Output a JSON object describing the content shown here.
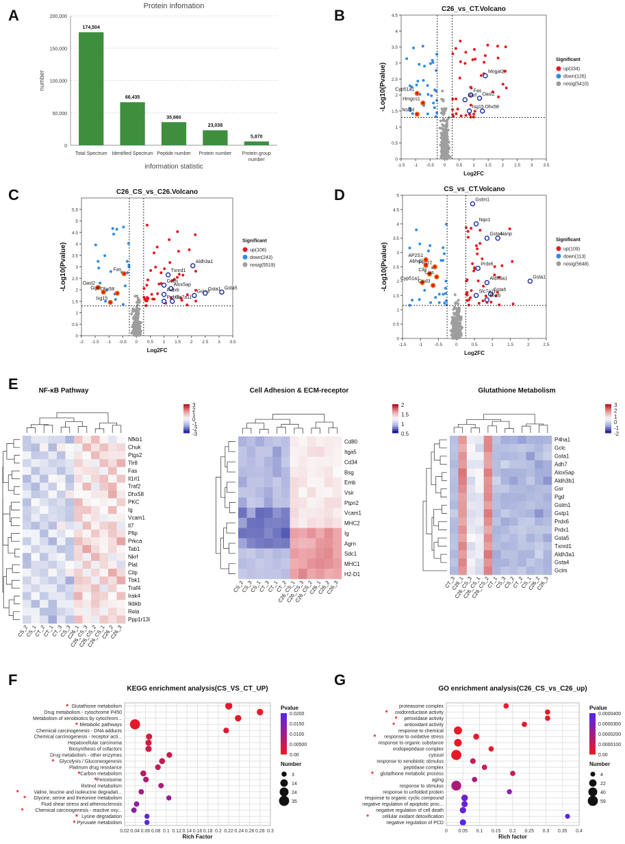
{
  "panel_labels": [
    "A",
    "B",
    "C",
    "D",
    "E",
    "F",
    "G"
  ],
  "chart_data": [
    {
      "id": "A",
      "type": "bar",
      "title": "Protein infomation",
      "xlabel": "information statistic",
      "ylabel": "number",
      "ylim": [
        0,
        200000
      ],
      "yticks": [
        "0",
        "50,000",
        "100,000",
        "150,000",
        "200,000"
      ],
      "categories": [
        "Total Spectrum",
        "Identified Spectrum",
        "Peptide number",
        "Protein number",
        "Protein group number"
      ],
      "values": [
        174504,
        66435,
        35660,
        23038,
        5870
      ],
      "value_labels": [
        "174,504",
        "66,435",
        "35,660",
        "23,038",
        "5,870"
      ],
      "color": "#3e8e3e"
    },
    {
      "id": "B",
      "type": "scatter",
      "title": "C26_vs_CT.Volcano",
      "xlabel": "Log2FC",
      "ylabel": "-Log10(Pvalue)",
      "xlim": [
        -1.5,
        3.5
      ],
      "ylim": [
        0,
        4.5
      ],
      "xticks": [
        "-1.5",
        "-1",
        "-0.5",
        "0",
        "0.5",
        "1",
        "1.5",
        "2",
        "2.5",
        "3",
        "3.5"
      ],
      "yticks": [
        "0",
        "0.5",
        "1",
        "1.5",
        "2",
        "2.5",
        "3",
        "3.5",
        "4",
        "4.5"
      ],
      "vlines": [
        -0.26,
        0.26
      ],
      "hline": 1.3,
      "legend_title": "Significant",
      "legend": [
        "up(334)",
        "down(126)",
        "nosig(5410)"
      ],
      "labeled_points": [
        {
          "label": "Mogat2",
          "x": 1.4,
          "y": 2.6,
          "group": "up"
        },
        {
          "label": "Oasl2",
          "x": 1.2,
          "y": 1.9,
          "group": "up"
        },
        {
          "label": "Fas",
          "x": 0.9,
          "y": 2.0,
          "group": "up"
        },
        {
          "label": "Nkrf",
          "x": 0.7,
          "y": 1.85,
          "group": "up"
        },
        {
          "label": "Isg15",
          "x": 0.85,
          "y": 1.5,
          "group": "up"
        },
        {
          "label": "Dhx58",
          "x": 1.3,
          "y": 1.5,
          "group": "up"
        },
        {
          "label": "Cyp51a1",
          "x": -0.95,
          "y": 2.05,
          "group": "down"
        },
        {
          "label": "Hmgcs1",
          "x": -0.75,
          "y": 1.75,
          "group": "down"
        },
        {
          "label": "Nsdhl",
          "x": -0.95,
          "y": 1.4,
          "group": "down"
        }
      ]
    },
    {
      "id": "C",
      "type": "scatter",
      "title": "C26_CS_vs_C26.Volcano",
      "xlabel": "Log2FC",
      "ylabel": "-Log10(Pvalue)",
      "xlim": [
        -2,
        3.5
      ],
      "ylim": [
        0,
        6
      ],
      "xticks": [
        "-2",
        "-1.5",
        "-1",
        "-0.5",
        "0",
        "0.5",
        "1",
        "1.5",
        "2",
        "2.5",
        "3",
        "3.5"
      ],
      "yticks": [
        "0",
        "0.5",
        "1",
        "1.5",
        "2",
        "2.5",
        "3",
        "3.5",
        "4",
        "4.5",
        "5",
        "5.5"
      ],
      "vlines": [
        -0.26,
        0.26
      ],
      "hline": 1.3,
      "legend_title": "Significant",
      "legend": [
        "up(108)",
        "down(243)",
        "nosig(5519)"
      ],
      "labeled_points": [
        {
          "label": "Aldh3a1",
          "x": 2.05,
          "y": 3.05,
          "group": "up"
        },
        {
          "label": "Txnrd1",
          "x": 1.15,
          "y": 2.65,
          "group": "up"
        },
        {
          "label": "Gclm",
          "x": 1.0,
          "y": 2.2,
          "group": "up"
        },
        {
          "label": "Alox5ap",
          "x": 1.25,
          "y": 2.05,
          "group": "up"
        },
        {
          "label": "Prdx6",
          "x": 1.0,
          "y": 1.8,
          "group": "up"
        },
        {
          "label": "Gsta4",
          "x": 2.1,
          "y": 1.75,
          "group": "up"
        },
        {
          "label": "Gsta1",
          "x": 2.5,
          "y": 1.85,
          "group": "up"
        },
        {
          "label": "Gsta5",
          "x": 3.1,
          "y": 1.9,
          "group": "up"
        },
        {
          "label": "Slc7a11",
          "x": 1.3,
          "y": 1.5,
          "group": "up"
        },
        {
          "label": "Prdx1",
          "x": 1.0,
          "y": 1.5,
          "group": "up"
        },
        {
          "label": "Fas",
          "x": -0.45,
          "y": 2.7,
          "group": "down"
        },
        {
          "label": "Oasl2",
          "x": -1.4,
          "y": 2.1,
          "group": "down"
        },
        {
          "label": "Dhx58",
          "x": -0.7,
          "y": 1.85,
          "group": "down"
        },
        {
          "label": "Ggct",
          "x": -1.2,
          "y": 1.9,
          "group": "down"
        },
        {
          "label": "Isg15",
          "x": -0.95,
          "y": 1.45,
          "group": "down"
        }
      ]
    },
    {
      "id": "D",
      "type": "scatter",
      "title": "CS_vs_CT.Volcano",
      "xlabel": "Log2FC",
      "ylabel": "-Log10(Pvalue)",
      "xlim": [
        -1.5,
        2.5
      ],
      "ylim": [
        0,
        5
      ],
      "xticks": [
        "-1.5",
        "-1",
        "-0.5",
        "0",
        "0.5",
        "1",
        "1.5",
        "2",
        "2.5"
      ],
      "yticks": [
        "0",
        "0.5",
        "1",
        "1.5",
        "2",
        "2.5",
        "3",
        "3.5",
        "4",
        "4.5",
        "5"
      ],
      "vlines": [
        -0.26,
        0.26
      ],
      "hline": 1.15,
      "legend_title": "Significant",
      "legend": [
        "up(109)",
        "down(113)",
        "nosig(5648)"
      ],
      "labeled_points": [
        {
          "label": "Gstm1",
          "x": 0.45,
          "y": 4.7,
          "group": "up"
        },
        {
          "label": "Nqo1",
          "x": 0.55,
          "y": 4.0,
          "group": "up"
        },
        {
          "label": "Gsta4",
          "x": 0.85,
          "y": 3.5,
          "group": "up"
        },
        {
          "label": "Nanp",
          "x": 1.15,
          "y": 3.5,
          "group": "up"
        },
        {
          "label": "Prdx6",
          "x": 0.6,
          "y": 2.45,
          "group": "up"
        },
        {
          "label": "Aldh3a1",
          "x": 0.85,
          "y": 1.95,
          "group": "up"
        },
        {
          "label": "Gsta1",
          "x": 2.05,
          "y": 2.0,
          "group": "up"
        },
        {
          "label": "Gsta5",
          "x": 0.95,
          "y": 1.55,
          "group": "up"
        },
        {
          "label": "Slc7a11",
          "x": 0.55,
          "y": 1.5,
          "group": "up"
        },
        {
          "label": "Blvrb",
          "x": 0.85,
          "y": 1.35,
          "group": "up"
        },
        {
          "label": "AP2S1",
          "x": -0.85,
          "y": 2.75,
          "group": "down"
        },
        {
          "label": "Abhd2",
          "x": -0.85,
          "y": 2.55,
          "group": "down"
        },
        {
          "label": "Plscr2",
          "x": -0.6,
          "y": 2.5,
          "group": "down"
        },
        {
          "label": "Cilp",
          "x": -0.75,
          "y": 2.25,
          "group": "down"
        },
        {
          "label": "Lias",
          "x": -0.55,
          "y": 2.15,
          "group": "down"
        },
        {
          "label": "Cyp51a1",
          "x": -0.95,
          "y": 1.95,
          "group": "down"
        },
        {
          "label": "Cisd3",
          "x": -0.65,
          "y": 1.85,
          "group": "down"
        }
      ]
    },
    {
      "id": "E1",
      "type": "heatmap",
      "title": "NF-κB Pathway",
      "colorbar": [
        "3",
        "2",
        "1",
        "0",
        "-1",
        "-2",
        "-3"
      ],
      "columns": [
        "CS_2",
        "CS_1",
        "CT_2",
        "CT_1",
        "CT_3",
        "CS_3",
        "C26_1",
        "C26_CS_3",
        "C26_CS_2",
        "C26_CS_1",
        "C26_2",
        "C26_3"
      ],
      "rows": [
        "Nfkb1",
        "Chuk",
        "Ptgs2",
        "Tlr8",
        "Fas",
        "Il1rl1",
        "Traf2",
        "Dhx58",
        "PKC",
        "Ig",
        "Vcam1",
        "Il7",
        "Pltp",
        "Prkca",
        "Tab1",
        "Nkrf",
        "Plat",
        "Cilp",
        "Tbk1",
        "Traf4",
        "Irak4",
        "Ikbkb",
        "Rela",
        "Ppp1r13l"
      ]
    },
    {
      "id": "E2",
      "type": "heatmap",
      "title": "Cell Adhesion & ECM-receptor",
      "colorbar": [
        "2",
        "1.5",
        "1",
        "0.5"
      ],
      "columns": [
        "CS_2",
        "CS_3",
        "CS_1",
        "CT_3",
        "CT_1",
        "CT_2",
        "C26_CS_1",
        "C26_CS_3",
        "C26_CS_2",
        "C26_1",
        "C26_2",
        "C26_3"
      ],
      "rows": [
        "Cd80",
        "Itga5",
        "Cd34",
        "Bsg",
        "Emb",
        "Vsir",
        "Ptpn2",
        "Vcam1",
        "MHC2",
        "Ig",
        "Agrn",
        "Sdc1",
        "MHC1",
        "H2-D1"
      ]
    },
    {
      "id": "E3",
      "type": "heatmap",
      "title": "Glutathione Metabolism",
      "colorbar": [
        "3",
        "2",
        "1",
        "0",
        "-1",
        "-2"
      ],
      "columns": [
        "CT_3",
        "C26_1",
        "C26_CS_3",
        "C26_CS_1",
        "C26_CS_2",
        "CT_1",
        "CS_3",
        "CS_2",
        "CT_2",
        "CS_1",
        "C26_2",
        "C26_3"
      ],
      "rows": [
        "P4ha1",
        "Gclc",
        "Gsta1",
        "Adh7",
        "Alox5ap",
        "Aldh3b1",
        "Gsr",
        "Pgd",
        "Gstm1",
        "Gstp1",
        "Prdx6",
        "Prdx1",
        "Gsta5",
        "Txnrd1",
        "Aldh3a1",
        "Gsta4",
        "Gclm"
      ]
    },
    {
      "id": "F",
      "type": "scatter",
      "title": "KEGG enrichment analysis(CS_VS_CT_UP)",
      "xlabel": "Rich Factor",
      "xticks": [
        "0.02",
        "0.04",
        "0.06",
        "0.08",
        "0.1",
        "0.12",
        "0.14",
        "0.16",
        "0.18",
        "0.2",
        "0.22",
        "0.24",
        "0.26",
        "0.28",
        "0.3"
      ],
      "xlim": [
        0.02,
        0.3
      ],
      "terms": [
        "Glutathione metabolism",
        "Drug metabolism - cytochrome P450",
        "Metabolism of xenobiotics by cytochrom...",
        "Metabolic pathways",
        "Chemical carcinogenesis - DNA adducts",
        "Chemical carcinogenesis - receptor acti...",
        "Hepatocellular carcinoma",
        "Biosynthesis of cofactors",
        "Drug metabolism - other enzymes",
        "Glycolysis / Gluconeogenesis",
        "Platinum drug resistance",
        "Carbon metabolism",
        "Peroxisome",
        "Retinol metabolism",
        "Valine, leucine and isoleucine degradati...",
        "Glycine, serine and threonine metabolism",
        "Fluid shear stress and atherosclerosis",
        "Chemical carcinogenesis - reactive oxy...",
        "Lysine degradation",
        "Pyruvate metabolism"
      ],
      "starred": [
        true,
        false,
        false,
        true,
        false,
        false,
        false,
        false,
        false,
        true,
        false,
        true,
        true,
        false,
        true,
        true,
        false,
        true,
        true,
        true
      ],
      "rich_factor": [
        0.22,
        0.28,
        0.238,
        0.04,
        0.215,
        0.067,
        0.066,
        0.066,
        0.106,
        0.092,
        0.084,
        0.056,
        0.061,
        0.09,
        0.052,
        0.105,
        0.043,
        0.038,
        0.063,
        0.063
      ],
      "pvalue": [
        0.0,
        0.0,
        0.0,
        0.0,
        0.001,
        0.002,
        0.003,
        0.003,
        0.004,
        0.005,
        0.006,
        0.007,
        0.009,
        0.01,
        0.011,
        0.013,
        0.014,
        0.015,
        0.021,
        0.022
      ],
      "number": [
        12,
        8,
        8,
        35,
        5,
        7,
        7,
        7,
        5,
        6,
        5,
        6,
        5,
        4,
        4,
        3,
        4,
        4,
        3,
        3
      ],
      "legend_pvalue_title": "Pvalue",
      "legend_pvalue_ticks": [
        "0.0200",
        "0.0150",
        "0.0100",
        "0.00500",
        "0.00"
      ],
      "legend_number_title": "Number",
      "legend_number_ticks": [
        "3",
        "14",
        "24",
        "35"
      ]
    },
    {
      "id": "G",
      "type": "scatter",
      "title": "GO enrichment analysis(C26_CS_vs_C26_up)",
      "xlabel": "Rich factor",
      "xticks": [
        "0",
        "0.05",
        "0.1",
        "0.15",
        "0.2",
        "0.25",
        "0.3",
        "0.35",
        "0.4"
      ],
      "xlim": [
        0,
        0.4
      ],
      "terms": [
        "proteasome complex",
        "oxidoreductase activity",
        "peroxidase activity",
        "antioxidant activity",
        "response to chemical",
        "response to oxidative stress",
        "response to organic substance",
        "endopeptidase complex",
        "cytosol",
        "response to xenobiotic stimulus",
        "peptidase complex",
        "glutathione metabolic process",
        "aging",
        "response to stimulus",
        "response to unfolded protein",
        "response to organic cyclic compound",
        "negative regulation of apoptotic proc...",
        "negative regulation of cell death",
        "cellular oxidant detoxification",
        "negative regulation of PCD"
      ],
      "starred": [
        false,
        true,
        true,
        true,
        false,
        true,
        false,
        false,
        false,
        false,
        false,
        true,
        false,
        false,
        false,
        false,
        false,
        false,
        true,
        false
      ],
      "rich_factor": [
        0.18,
        0.305,
        0.305,
        0.235,
        0.035,
        0.09,
        0.035,
        0.135,
        0.03,
        0.08,
        0.115,
        0.2,
        0.085,
        0.03,
        0.19,
        0.055,
        0.055,
        0.05,
        0.365,
        0.05
      ],
      "pvalue": [
        0.0,
        0.0,
        0.0,
        0.0,
        0.0,
        0.0,
        0.0,
        0.0,
        0.0,
        1e-05,
        1e-05,
        1e-05,
        2e-05,
        2e-05,
        3e-05,
        4e-05,
        4e-05,
        4e-05,
        4.5e-05,
        4.5e-05
      ],
      "number": [
        6,
        6,
        6,
        6,
        30,
        10,
        25,
        6,
        59,
        8,
        6,
        6,
        6,
        55,
        5,
        15,
        12,
        13,
        4,
        12
      ],
      "legend_pvalue_title": "Pvalue",
      "legend_pvalue_ticks": [
        "0.0000400",
        "0.0000300",
        "0.0000200",
        "0.0000100",
        "0.00"
      ],
      "legend_number_title": "Number",
      "legend_number_ticks": [
        "4",
        "22",
        "40",
        "59"
      ]
    }
  ]
}
